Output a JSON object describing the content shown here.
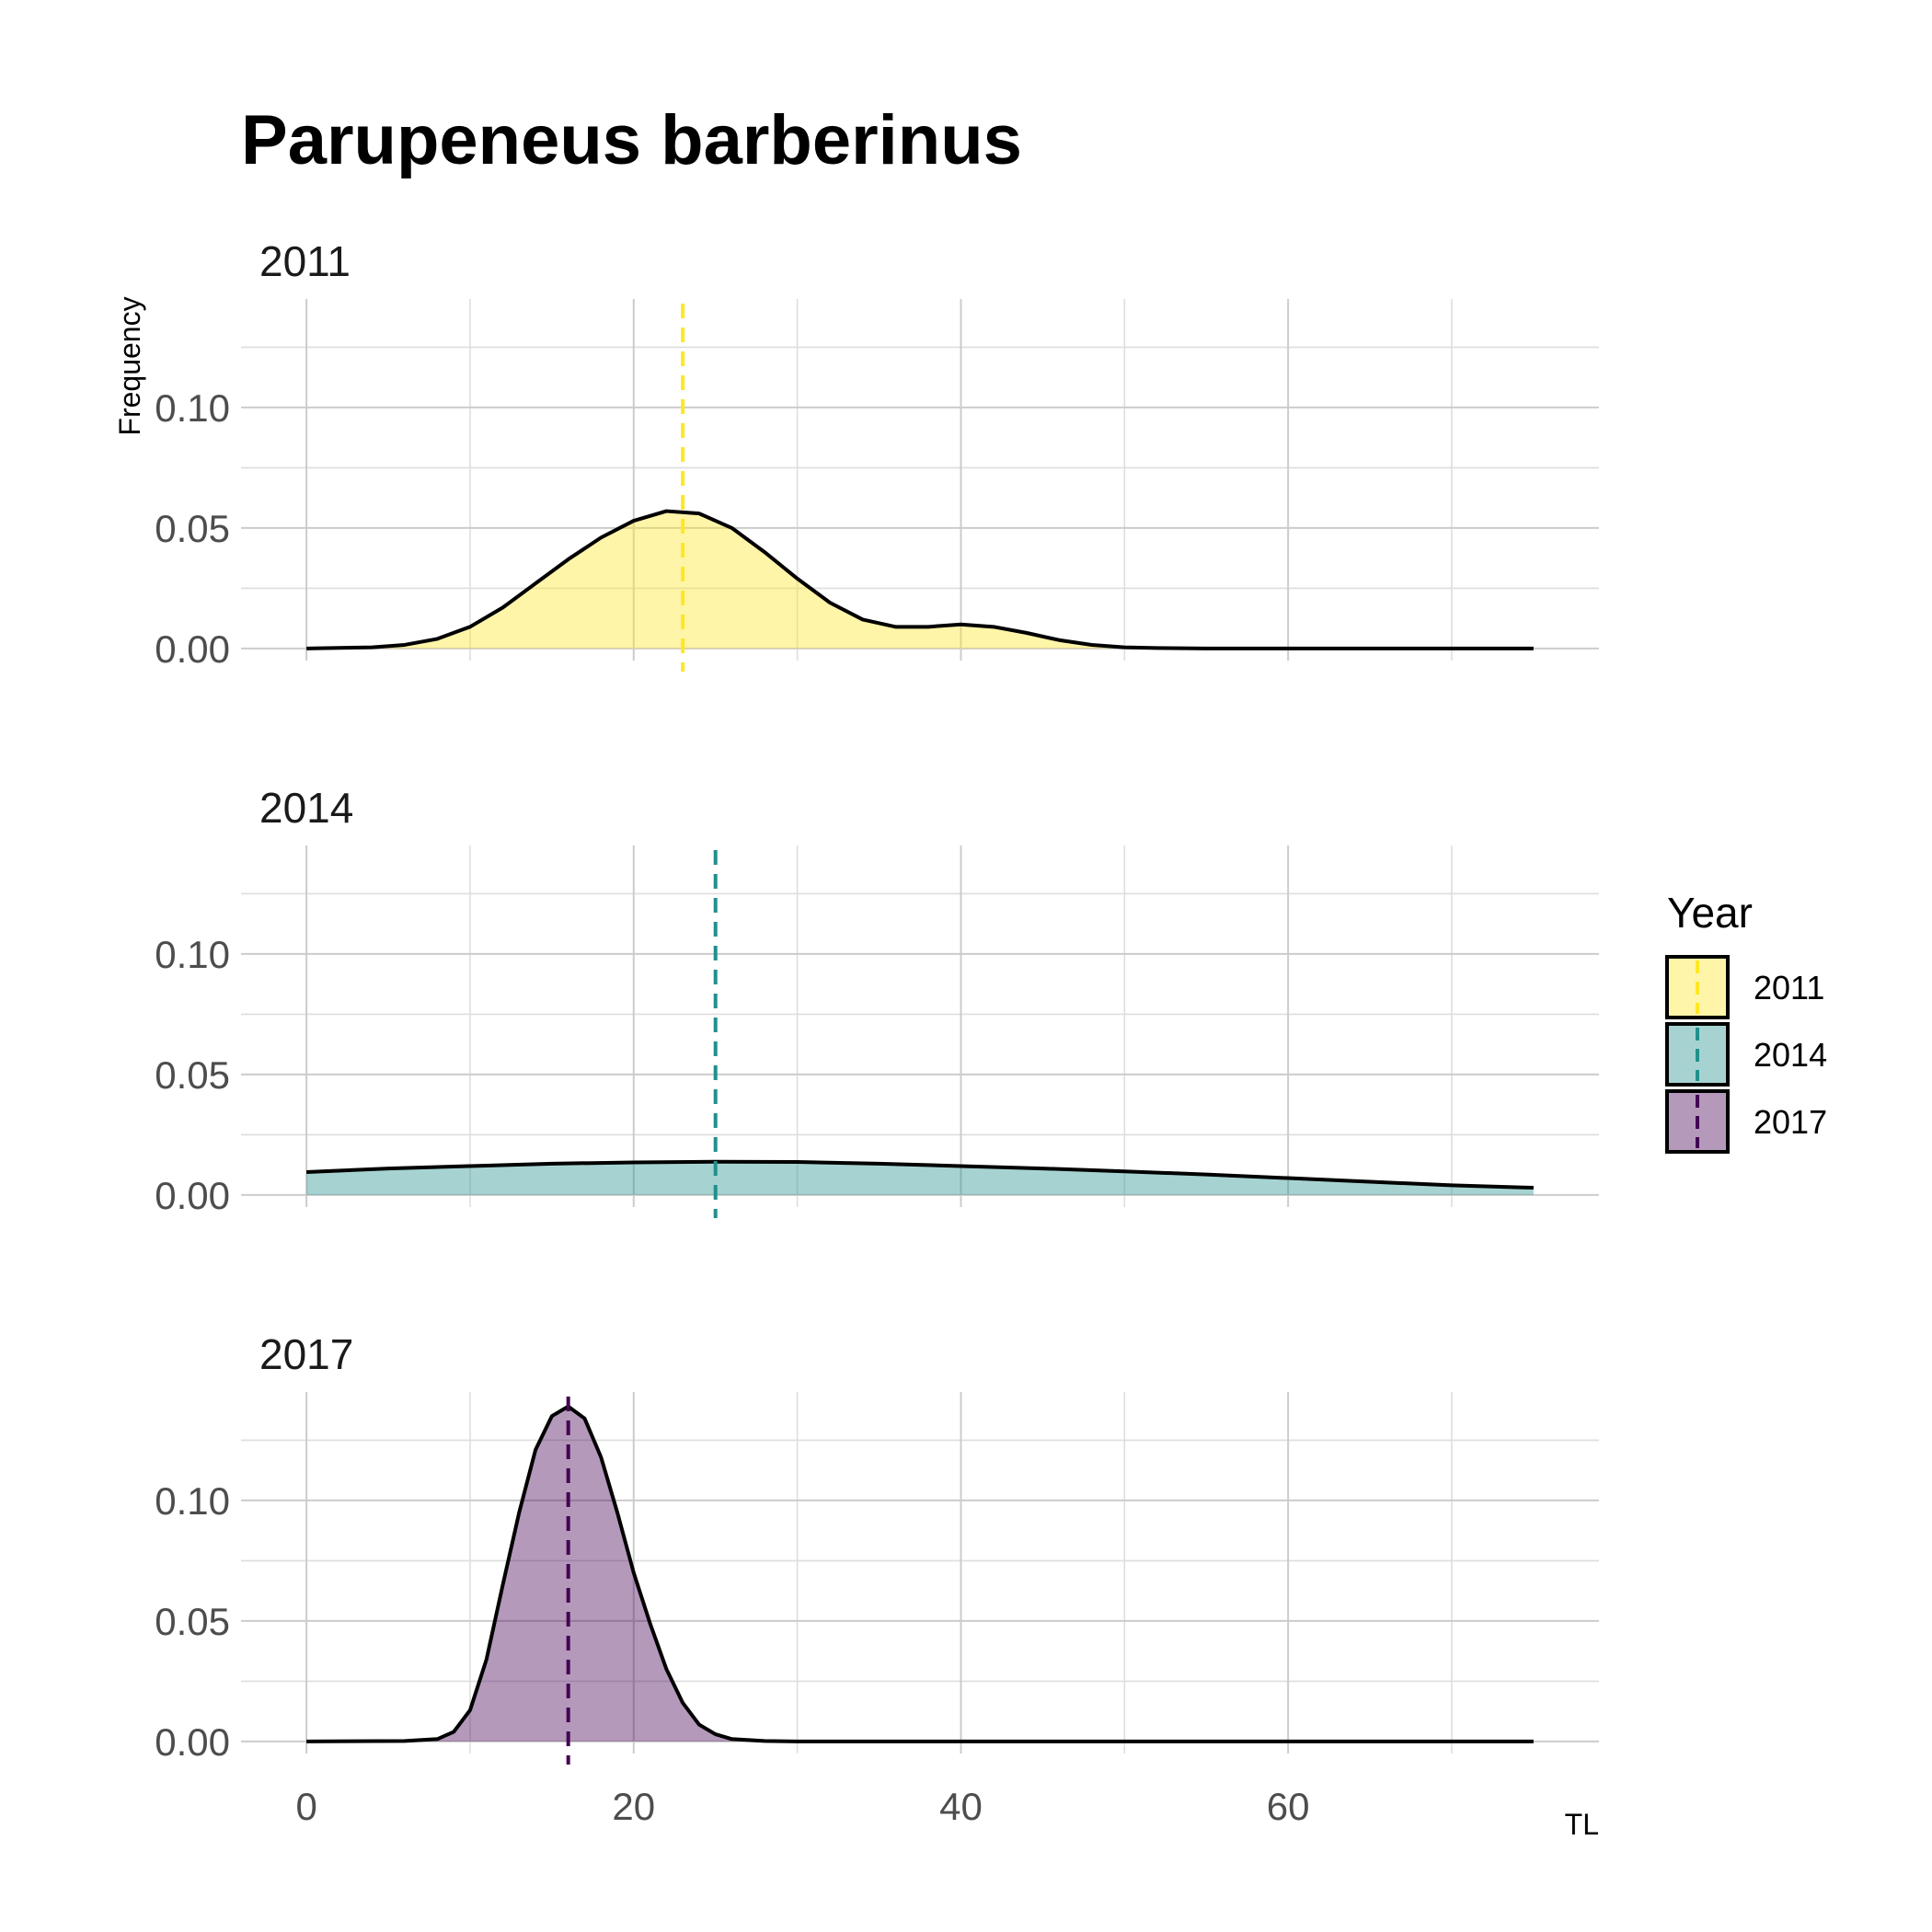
{
  "chart_data": {
    "type": "area",
    "chart_kind": "faceted density plot",
    "title": "Parupeneus barberinus",
    "xlabel": "TL",
    "ylabel": "Frequency",
    "xlim": [
      -4,
      79
    ],
    "ylim": [
      -0.005,
      0.145
    ],
    "x_ticks": [
      0,
      20,
      40,
      60
    ],
    "y_ticks": [
      0.0,
      0.05,
      0.1
    ],
    "grid": true,
    "legend": {
      "title": "Year",
      "placement": "right",
      "entries": [
        "2011",
        "2014",
        "2017"
      ]
    },
    "series": [
      {
        "name": "2011",
        "color": "#FDE725",
        "mean_line_x": 23,
        "x": [
          0,
          4,
          6,
          8,
          10,
          12,
          14,
          16,
          18,
          20,
          22,
          24,
          26,
          28,
          30,
          32,
          34,
          36,
          38,
          40,
          42,
          44,
          46,
          48,
          50,
          52,
          55,
          60,
          65,
          70,
          75
        ],
        "values": [
          0.0,
          0.0005,
          0.0015,
          0.004,
          0.009,
          0.017,
          0.027,
          0.037,
          0.046,
          0.053,
          0.057,
          0.056,
          0.05,
          0.04,
          0.029,
          0.019,
          0.012,
          0.009,
          0.009,
          0.01,
          0.009,
          0.0065,
          0.0035,
          0.0015,
          0.0005,
          0.0002,
          0.0,
          0.0,
          0.0,
          0.0,
          0.0
        ]
      },
      {
        "name": "2014",
        "color": "#21908C",
        "mean_line_x": 25,
        "x": [
          0,
          5,
          10,
          15,
          20,
          25,
          30,
          35,
          40,
          45,
          50,
          55,
          60,
          65,
          70,
          75
        ],
        "values": [
          0.0095,
          0.011,
          0.012,
          0.013,
          0.0135,
          0.0138,
          0.0137,
          0.013,
          0.012,
          0.011,
          0.0098,
          0.0085,
          0.007,
          0.0055,
          0.004,
          0.003
        ]
      },
      {
        "name": "2017",
        "color": "#440154",
        "mean_line_x": 16,
        "x": [
          0,
          6,
          8,
          9,
          10,
          11,
          12,
          13,
          14,
          15,
          16,
          17,
          18,
          19,
          20,
          21,
          22,
          23,
          24,
          25,
          26,
          28,
          30,
          35,
          40,
          50,
          60,
          75
        ],
        "values": [
          0.0,
          0.0002,
          0.001,
          0.004,
          0.013,
          0.034,
          0.065,
          0.095,
          0.121,
          0.135,
          0.139,
          0.134,
          0.118,
          0.095,
          0.07,
          0.049,
          0.03,
          0.016,
          0.007,
          0.003,
          0.001,
          0.0002,
          0.0,
          0.0,
          0.0,
          0.0,
          0.0,
          0.0
        ]
      }
    ]
  }
}
